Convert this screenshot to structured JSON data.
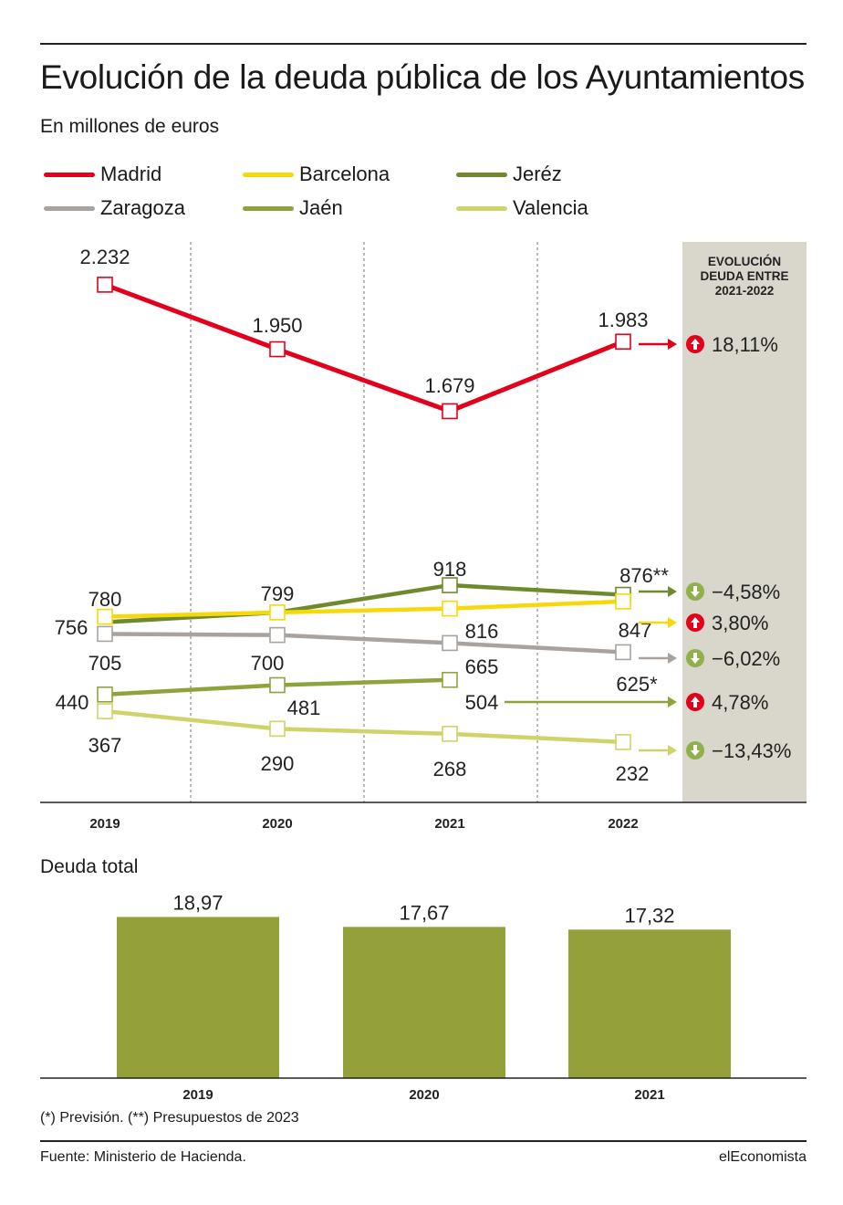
{
  "title": "Evolución de la deuda pública de los Ayuntamientos",
  "subtitle": "En millones de euros",
  "panel_title": [
    "EVOLUCIÓN",
    "DEUDA ENTRE",
    "2021-2022"
  ],
  "section_total_title": "Deuda total",
  "note": "(*) Previsión. (**) Presupuestos de 2023",
  "source": "Fuente: Ministerio de Hacienda.",
  "brand": "elEconomista",
  "colors": {
    "madrid": "#e2001a",
    "barcelona": "#f5d90a",
    "jerez": "#6f8a2e",
    "zaragoza": "#a8a39f",
    "jaen": "#8fa33c",
    "valencia": "#cfd46a",
    "bar": "#94a03a",
    "panel": "#d9d6cb",
    "up": "#e2001a",
    "down": "#8fb04a"
  },
  "legend": [
    {
      "name": "Madrid",
      "color": "#e2001a"
    },
    {
      "name": "Barcelona",
      "color": "#f5d90a"
    },
    {
      "name": "Jeréz",
      "color": "#6f8a2e"
    },
    {
      "name": "Zaragoza",
      "color": "#a8a39f"
    },
    {
      "name": "Jaén",
      "color": "#8fa33c"
    },
    {
      "name": "Valencia",
      "color": "#cfd46a"
    }
  ],
  "chart_data": [
    {
      "type": "line",
      "categories": [
        "2019",
        "2020",
        "2021",
        "2022"
      ],
      "series": [
        {
          "name": "Madrid",
          "values": [
            2232,
            1950,
            1679,
            1983
          ],
          "labels": [
            "2.232",
            "1.950",
            "1.679",
            "1.983"
          ],
          "change": "18,11%",
          "direction": "up"
        },
        {
          "name": "Jeréz",
          "values": [
            756,
            799,
            918,
            876
          ],
          "labels": [
            "756",
            "",
            "918",
            "876**"
          ],
          "change": "−4,58%",
          "direction": "down"
        },
        {
          "name": "Barcelona",
          "values": [
            780,
            799,
            816,
            847
          ],
          "labels": [
            "780",
            "799",
            "816",
            "847"
          ],
          "change": "3,80%",
          "direction": "up"
        },
        {
          "name": "Zaragoza",
          "values": [
            705,
            700,
            665,
            625
          ],
          "labels": [
            "705",
            "700",
            "665",
            "625*"
          ],
          "change": "−6,02%",
          "direction": "down"
        },
        {
          "name": "Jaén",
          "values": [
            440,
            481,
            504,
            null
          ],
          "labels": [
            "440",
            "481",
            "504",
            ""
          ],
          "change": "4,78%",
          "direction": "up"
        },
        {
          "name": "Valencia",
          "values": [
            367,
            290,
            268,
            232
          ],
          "labels": [
            "367",
            "290",
            "268",
            "232"
          ],
          "change": "−13,43%",
          "direction": "down"
        }
      ]
    },
    {
      "type": "bar",
      "title": "Deuda total",
      "categories": [
        "2019",
        "2020",
        "2021"
      ],
      "values": [
        18.97,
        17.67,
        17.32
      ],
      "labels": [
        "18,97",
        "17,67",
        "17,32"
      ]
    }
  ]
}
